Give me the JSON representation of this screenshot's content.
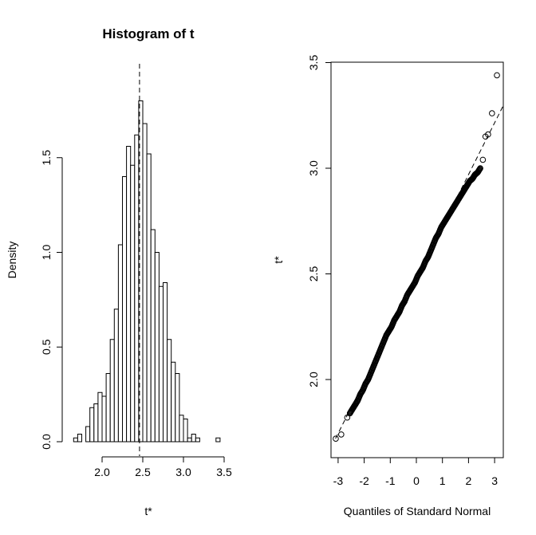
{
  "chart_data": [
    {
      "type": "histogram",
      "title": "Histogram of t",
      "xlabel": "t*",
      "ylabel": "Density",
      "xlim": [
        1.6,
        3.55
      ],
      "ylim": [
        0,
        1.9
      ],
      "xticks": [
        "2.0",
        "2.5",
        "3.0",
        "3.5"
      ],
      "yticks": [
        "0.0",
        "0.5",
        "1.0",
        "1.5"
      ],
      "bin_width": 0.05,
      "bins": [
        {
          "start": 1.65,
          "density": 0.02
        },
        {
          "start": 1.7,
          "density": 0.04
        },
        {
          "start": 1.75,
          "density": 0.0
        },
        {
          "start": 1.8,
          "density": 0.08
        },
        {
          "start": 1.85,
          "density": 0.18
        },
        {
          "start": 1.9,
          "density": 0.2
        },
        {
          "start": 1.95,
          "density": 0.26
        },
        {
          "start": 2.0,
          "density": 0.24
        },
        {
          "start": 2.05,
          "density": 0.36
        },
        {
          "start": 2.1,
          "density": 0.54
        },
        {
          "start": 2.15,
          "density": 0.7
        },
        {
          "start": 2.2,
          "density": 1.04
        },
        {
          "start": 2.25,
          "density": 1.4
        },
        {
          "start": 2.3,
          "density": 1.56
        },
        {
          "start": 2.35,
          "density": 1.46
        },
        {
          "start": 2.4,
          "density": 1.62
        },
        {
          "start": 2.45,
          "density": 1.8
        },
        {
          "start": 2.5,
          "density": 1.68
        },
        {
          "start": 2.55,
          "density": 1.52
        },
        {
          "start": 2.6,
          "density": 1.12
        },
        {
          "start": 2.65,
          "density": 1.0
        },
        {
          "start": 2.7,
          "density": 0.82
        },
        {
          "start": 2.75,
          "density": 0.84
        },
        {
          "start": 2.8,
          "density": 0.54
        },
        {
          "start": 2.85,
          "density": 0.42
        },
        {
          "start": 2.9,
          "density": 0.36
        },
        {
          "start": 2.95,
          "density": 0.14
        },
        {
          "start": 3.0,
          "density": 0.12
        },
        {
          "start": 3.05,
          "density": 0.02
        },
        {
          "start": 3.1,
          "density": 0.04
        },
        {
          "start": 3.15,
          "density": 0.02
        },
        {
          "start": 3.2,
          "density": 0.0
        },
        {
          "start": 3.25,
          "density": 0.0
        },
        {
          "start": 3.3,
          "density": 0.0
        },
        {
          "start": 3.35,
          "density": 0.0
        },
        {
          "start": 3.4,
          "density": 0.02
        }
      ],
      "reference_line": {
        "x": 2.46,
        "style": "dashed",
        "orientation": "vertical"
      }
    },
    {
      "type": "scatter",
      "title": "",
      "xlabel": "Quantiles of Standard Normal",
      "ylabel": "t*",
      "xlim": [
        -3.4,
        3.4
      ],
      "ylim": [
        1.72,
        3.52
      ],
      "xticks": [
        "-3",
        "-2",
        "-1",
        "0",
        "1",
        "2",
        "3"
      ],
      "yticks": [
        "2.0",
        "2.5",
        "3.0",
        "3.5"
      ],
      "reference_line": {
        "intercept": 2.48,
        "slope": 0.245,
        "style": "dashed"
      },
      "points": [
        {
          "x": -3.09,
          "y": 1.72
        },
        {
          "x": -2.88,
          "y": 1.74
        },
        {
          "x": -2.65,
          "y": 1.82
        },
        {
          "x": -2.55,
          "y": 1.84
        },
        {
          "x": -2.45,
          "y": 1.86
        },
        {
          "x": -2.35,
          "y": 1.88
        },
        {
          "x": -2.25,
          "y": 1.9
        },
        {
          "x": -2.15,
          "y": 1.93
        },
        {
          "x": -2.05,
          "y": 1.95
        },
        {
          "x": -1.95,
          "y": 1.98
        },
        {
          "x": -1.85,
          "y": 2.0
        },
        {
          "x": -1.75,
          "y": 2.03
        },
        {
          "x": -1.65,
          "y": 2.06
        },
        {
          "x": -1.55,
          "y": 2.09
        },
        {
          "x": -1.45,
          "y": 2.12
        },
        {
          "x": -1.35,
          "y": 2.15
        },
        {
          "x": -1.25,
          "y": 2.18
        },
        {
          "x": -1.15,
          "y": 2.21
        },
        {
          "x": -1.05,
          "y": 2.23
        },
        {
          "x": -0.95,
          "y": 2.25
        },
        {
          "x": -0.85,
          "y": 2.28
        },
        {
          "x": -0.75,
          "y": 2.3
        },
        {
          "x": -0.65,
          "y": 2.32
        },
        {
          "x": -0.55,
          "y": 2.35
        },
        {
          "x": -0.45,
          "y": 2.37
        },
        {
          "x": -0.35,
          "y": 2.4
        },
        {
          "x": -0.25,
          "y": 2.42
        },
        {
          "x": -0.15,
          "y": 2.44
        },
        {
          "x": -0.05,
          "y": 2.46
        },
        {
          "x": 0.05,
          "y": 2.49
        },
        {
          "x": 0.15,
          "y": 2.51
        },
        {
          "x": 0.25,
          "y": 2.53
        },
        {
          "x": 0.35,
          "y": 2.56
        },
        {
          "x": 0.45,
          "y": 2.58
        },
        {
          "x": 0.55,
          "y": 2.61
        },
        {
          "x": 0.65,
          "y": 2.64
        },
        {
          "x": 0.75,
          "y": 2.67
        },
        {
          "x": 0.85,
          "y": 2.69
        },
        {
          "x": 0.95,
          "y": 2.72
        },
        {
          "x": 1.05,
          "y": 2.74
        },
        {
          "x": 1.15,
          "y": 2.76
        },
        {
          "x": 1.25,
          "y": 2.78
        },
        {
          "x": 1.35,
          "y": 2.8
        },
        {
          "x": 1.45,
          "y": 2.82
        },
        {
          "x": 1.55,
          "y": 2.84
        },
        {
          "x": 1.65,
          "y": 2.86
        },
        {
          "x": 1.75,
          "y": 2.88
        },
        {
          "x": 1.85,
          "y": 2.9
        },
        {
          "x": 1.95,
          "y": 2.92
        },
        {
          "x": 2.05,
          "y": 2.94
        },
        {
          "x": 2.15,
          "y": 2.95
        },
        {
          "x": 2.25,
          "y": 2.97
        },
        {
          "x": 2.35,
          "y": 2.98
        },
        {
          "x": 2.45,
          "y": 3.0
        },
        {
          "x": 2.55,
          "y": 3.04
        },
        {
          "x": 2.65,
          "y": 3.15
        },
        {
          "x": 2.75,
          "y": 3.16
        },
        {
          "x": 2.9,
          "y": 3.26
        },
        {
          "x": 3.09,
          "y": 3.44
        }
      ]
    }
  ]
}
